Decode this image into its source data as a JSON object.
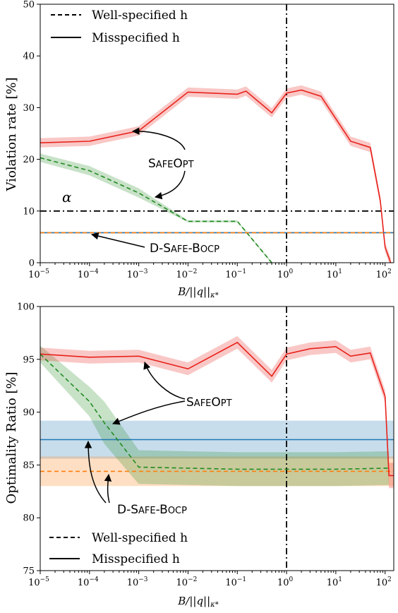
{
  "chart_data": [
    {
      "type": "line",
      "ylabel": "Violation rate [%]",
      "xlabel": "B/||q||κ*",
      "x_scale": "log",
      "xlim": [
        1e-05,
        150
      ],
      "ylim": [
        0,
        50
      ],
      "x_ticks": [
        {
          "base": "10",
          "exp": "−5"
        },
        {
          "base": "10",
          "exp": "−4"
        },
        {
          "base": "10",
          "exp": "−3"
        },
        {
          "base": "10",
          "exp": "−2"
        },
        {
          "base": "10",
          "exp": "−1"
        },
        {
          "base": "10",
          "exp": "0"
        },
        {
          "base": "10",
          "exp": "1"
        },
        {
          "base": "10",
          "exp": "2"
        }
      ],
      "y_ticks": [
        "0",
        "10",
        "20",
        "30",
        "40",
        "50"
      ],
      "legend": {
        "position": "top-left",
        "entries": [
          "Well-specified h",
          "Misspecified h"
        ]
      },
      "alpha_label": "α",
      "alpha_value": 10,
      "vline_x": 1,
      "annotations": [
        "SafeOpt",
        "D-Safe-Bocp"
      ],
      "series": [
        {
          "name": "SafeOpt (Misspecified h)",
          "color": "#e8221c",
          "style": "solid",
          "x": [
            1e-05,
            0.0001,
            0.001,
            0.01,
            0.1,
            0.15,
            0.5,
            1,
            2,
            5,
            20,
            50,
            80,
            100,
            130
          ],
          "y": [
            23.2,
            23.5,
            25.5,
            33.0,
            32.6,
            33.2,
            29.0,
            32.8,
            33.4,
            32.2,
            23.5,
            22.3,
            12.0,
            3.0,
            0
          ],
          "band": [
            0.9,
            0.9,
            0.9,
            0.9,
            0.9,
            0.9,
            0.9,
            0.9,
            0.9,
            0.9,
            0.9,
            0.9,
            0.9,
            0.9,
            0.9
          ]
        },
        {
          "name": "SafeOpt (Well-specified h)",
          "color": "#228b22",
          "style": "dashed",
          "x": [
            1e-05,
            0.0001,
            0.001,
            0.01,
            0.1,
            0.5
          ],
          "y": [
            20.3,
            17.8,
            13.5,
            8.0,
            8.0,
            0
          ],
          "band": [
            0.8,
            0.9,
            0.9,
            0.2,
            0.2,
            0.2
          ]
        },
        {
          "name": "D-Safe-Bocp (Misspecified h)",
          "color": "#1f77b4",
          "style": "solid",
          "x": [
            1e-05,
            150
          ],
          "y": [
            5.8,
            5.8
          ],
          "band": [
            0.1,
            0.1
          ]
        },
        {
          "name": "D-Safe-Bocp (Well-specified h)",
          "color": "#ff7f0e",
          "style": "dashed",
          "x": [
            1e-05,
            150
          ],
          "y": [
            5.8,
            5.8
          ],
          "band": [
            0.15,
            0.15
          ]
        }
      ]
    },
    {
      "type": "line",
      "ylabel": "Optimality Ratio [%]",
      "xlabel": "B/||q||κ*",
      "x_scale": "log",
      "xlim": [
        1e-05,
        150
      ],
      "ylim": [
        75,
        100
      ],
      "x_ticks": [
        {
          "base": "10",
          "exp": "−5"
        },
        {
          "base": "10",
          "exp": "−4"
        },
        {
          "base": "10",
          "exp": "−3"
        },
        {
          "base": "10",
          "exp": "−2"
        },
        {
          "base": "10",
          "exp": "−1"
        },
        {
          "base": "10",
          "exp": "0"
        },
        {
          "base": "10",
          "exp": "1"
        },
        {
          "base": "10",
          "exp": "2"
        }
      ],
      "y_ticks": [
        "75",
        "80",
        "85",
        "90",
        "95",
        "100"
      ],
      "legend": {
        "position": "bottom-left",
        "entries": [
          "Well-specified h",
          "Misspecified h"
        ]
      },
      "vline_x": 1,
      "annotations": [
        "SafeOpt",
        "D-Safe-Bocp"
      ],
      "series": [
        {
          "name": "D-Safe-Bocp (Misspecified h)",
          "color": "#1f77b4",
          "style": "solid",
          "x": [
            1e-05,
            150
          ],
          "y": [
            87.4,
            87.4
          ],
          "band": [
            1.8,
            1.8
          ]
        },
        {
          "name": "D-Safe-Bocp (Well-specified h)",
          "color": "#ff7f0e",
          "style": "dashed",
          "x": [
            1e-05,
            150
          ],
          "y": [
            84.4,
            84.4
          ],
          "band": [
            1.4,
            1.4
          ]
        },
        {
          "name": "SafeOpt (Well-specified h)",
          "color": "#228b22",
          "style": "dashed",
          "x": [
            1e-05,
            0.0001,
            0.0002,
            0.001,
            0.01,
            0.1,
            1,
            10,
            120
          ],
          "y": [
            95.5,
            91.0,
            89.0,
            84.8,
            84.7,
            84.6,
            84.6,
            84.6,
            84.7
          ],
          "band": [
            0.8,
            1.4,
            2.0,
            1.6,
            1.6,
            1.6,
            1.6,
            1.6,
            1.6
          ]
        },
        {
          "name": "SafeOpt (Misspecified h)",
          "color": "#e8221c",
          "style": "solid",
          "x": [
            1e-05,
            0.0001,
            0.001,
            0.01,
            0.1,
            0.5,
            1,
            3,
            10,
            20,
            50,
            100,
            120,
            150
          ],
          "y": [
            95.5,
            95.2,
            95.3,
            94.1,
            96.6,
            93.4,
            95.5,
            96.0,
            96.2,
            95.3,
            95.6,
            91.5,
            84.0,
            84.0
          ],
          "band": [
            0.6,
            0.6,
            0.6,
            0.6,
            0.6,
            0.6,
            0.6,
            0.6,
            0.6,
            0.6,
            0.6,
            0.6,
            1.2,
            1.2
          ]
        }
      ]
    }
  ]
}
